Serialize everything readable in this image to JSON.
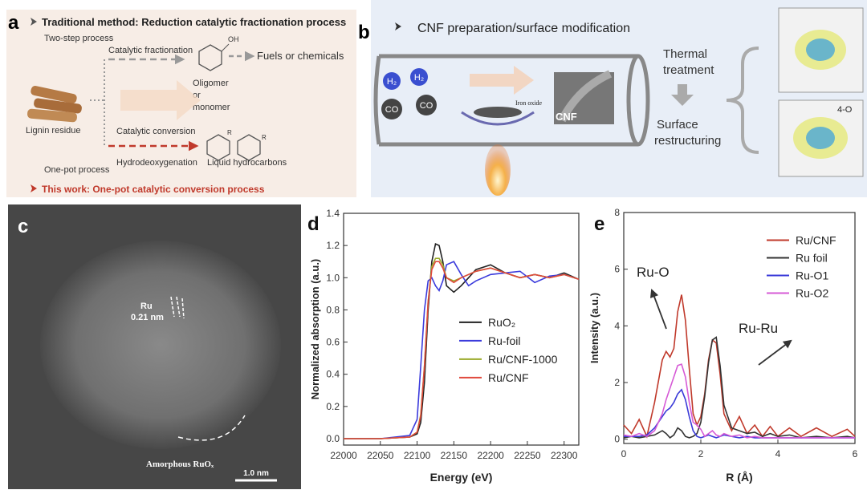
{
  "panel_a": {
    "label": "a",
    "title": "Traditional method: Reduction catalytic fractionation process",
    "two_step": "Two-step process",
    "fractionation": "Catalytic fractionation",
    "oh": "OH",
    "fuels": "Fuels or chemicals",
    "oligomer": [
      "Oligomer",
      "or",
      "monomer"
    ],
    "lignin": "Lignin residue",
    "conversion": "Catalytic conversion",
    "r_labels": [
      "R",
      "R"
    ],
    "hdo": "Hydrodeoxygenation",
    "liquid": "Liquid hydrocarbons",
    "one_pot": "One-pot process",
    "this_work": "This work: One-pot catalytic conversion process"
  },
  "panel_b": {
    "label": "b",
    "title": "CNF preparation/surface modification",
    "gases": [
      "H₂",
      "H₂",
      "CO",
      "CO"
    ],
    "iron_oxide": "Iron oxide",
    "cnf": "CNF",
    "thermal": [
      "Thermal",
      "treatment"
    ],
    "surface": [
      "Surface",
      "restructuring"
    ],
    "structure_label": "4-O"
  },
  "panel_c": {
    "label": "c",
    "ru": "Ru",
    "spacing": "0.21 nm",
    "amorphous": "Amorphous RuOₓ",
    "scale": "1.0 nm"
  },
  "chart_data": [
    {
      "type": "line",
      "label": "d",
      "x_label": "Energy (eV)",
      "y_label": "Normalized absorption (a.u.)",
      "legend": "center right",
      "xlim": [
        22000,
        22320
      ],
      "ylim": [
        -0.04,
        1.4
      ],
      "xticks": [
        22000,
        22050,
        22100,
        22150,
        22200,
        22250,
        22300
      ],
      "yticks": [
        {
          "value": 0,
          "label": "0.0"
        },
        0.2,
        0.4,
        0.6,
        0.8,
        {
          "value": 1,
          "label": "1.0"
        },
        1.2,
        1.4
      ],
      "x": [
        22000,
        22050,
        22090,
        22100,
        22105,
        22110,
        22115,
        22120,
        22125,
        22130,
        22135,
        22140,
        22150,
        22160,
        22170,
        22180,
        22200,
        22220,
        22240,
        22260,
        22280,
        22300,
        22320
      ],
      "series": [
        {
          "name": "RuO₂",
          "color": "#222222",
          "values": [
            0,
            0,
            0.01,
            0.03,
            0.1,
            0.35,
            0.8,
            1.1,
            1.21,
            1.2,
            1.1,
            0.95,
            0.91,
            0.95,
            1.0,
            1.05,
            1.08,
            1.03,
            1.0,
            1.02,
            1.0,
            1.03,
            0.99
          ]
        },
        {
          "name": "Ru-foil",
          "color": "#3b3bdc",
          "values": [
            0,
            0,
            0.02,
            0.12,
            0.45,
            0.8,
            0.98,
            1.0,
            0.95,
            0.92,
            0.98,
            1.08,
            1.1,
            1.02,
            0.95,
            0.98,
            1.02,
            1.03,
            1.04,
            0.97,
            1.01,
            1.02,
            0.99
          ]
        },
        {
          "name": "Ru/CNF-1000",
          "color": "#9aaa2a",
          "values": [
            0,
            0,
            0.01,
            0.04,
            0.15,
            0.45,
            0.85,
            1.07,
            1.12,
            1.12,
            1.08,
            1.0,
            0.98,
            1.0,
            1.02,
            1.04,
            1.06,
            1.03,
            1.0,
            1.02,
            1.0,
            1.02,
            0.99
          ]
        },
        {
          "name": "Ru/CNF",
          "color": "#e0493c",
          "values": [
            0,
            0,
            0.01,
            0.04,
            0.14,
            0.45,
            0.85,
            1.05,
            1.1,
            1.1,
            1.06,
            1.0,
            0.97,
            1.0,
            1.02,
            1.04,
            1.06,
            1.03,
            1.0,
            1.02,
            1.0,
            1.02,
            0.99
          ]
        }
      ]
    },
    {
      "type": "line",
      "label": "e",
      "x_label": "R (Å)",
      "y_label": "Intensity (a.u.)",
      "legend": "upper right",
      "annotations": [
        "Ru-O",
        "Ru-Ru"
      ],
      "xlim": [
        0,
        6
      ],
      "ylim": [
        -0.15,
        8
      ],
      "xticks": [
        0,
        2,
        4,
        6
      ],
      "yticks": [
        0,
        2,
        4,
        6,
        8
      ],
      "x": [
        0,
        0.2,
        0.4,
        0.6,
        0.8,
        1.0,
        1.1,
        1.2,
        1.3,
        1.4,
        1.5,
        1.6,
        1.7,
        1.8,
        1.9,
        2.0,
        2.1,
        2.2,
        2.3,
        2.4,
        2.5,
        2.6,
        2.8,
        3.0,
        3.2,
        3.4,
        3.6,
        3.8,
        4.0,
        4.3,
        4.6,
        5.0,
        5.4,
        5.8,
        6.0
      ],
      "series": [
        {
          "name": "Ru/CNF",
          "color": "#c0392b",
          "values": [
            0.5,
            0.2,
            0.7,
            0.1,
            1.3,
            2.8,
            3.1,
            2.9,
            3.2,
            4.5,
            5.1,
            4.2,
            2.5,
            0.9,
            0.5,
            0.8,
            1.6,
            2.8,
            3.5,
            3.4,
            2.3,
            0.9,
            0.3,
            0.8,
            0.2,
            0.5,
            0.1,
            0.45,
            0.1,
            0.4,
            0.1,
            0.4,
            0.1,
            0.35,
            0.1
          ]
        },
        {
          "name": "Ru foil",
          "color": "#333333",
          "values": [
            0.05,
            0.1,
            0.05,
            0.1,
            0.15,
            0.3,
            0.2,
            0.05,
            0.15,
            0.4,
            0.3,
            0.1,
            0.05,
            0.1,
            0.2,
            0.6,
            1.5,
            2.7,
            3.5,
            3.6,
            2.6,
            1.2,
            0.4,
            0.3,
            0.2,
            0.25,
            0.1,
            0.2,
            0.1,
            0.15,
            0.05,
            0.1,
            0.05,
            0.1,
            0.05
          ]
        },
        {
          "name": "Ru-O1",
          "color": "#3a3ad8",
          "values": [
            0.1,
            0.1,
            0.1,
            0.15,
            0.4,
            0.8,
            1.0,
            1.1,
            1.3,
            1.6,
            1.75,
            1.4,
            0.8,
            0.3,
            0.1,
            0.05,
            0.1,
            0.15,
            0.1,
            0.05,
            0.1,
            0.15,
            0.1,
            0.05,
            0.1,
            0.05,
            0.05,
            0.05,
            0.05,
            0.05,
            0.05,
            0.05,
            0.05,
            0.05,
            0.05
          ]
        },
        {
          "name": "Ru-O2",
          "color": "#d65ad6",
          "values": [
            0.15,
            0.1,
            0.2,
            0.1,
            0.3,
            0.9,
            1.4,
            1.8,
            2.2,
            2.6,
            2.65,
            2.2,
            1.3,
            0.6,
            0.5,
            0.35,
            0.1,
            0.2,
            0.3,
            0.15,
            0.1,
            0.2,
            0.1,
            0.15,
            0.05,
            0.1,
            0.05,
            0.05,
            0.05,
            0.05,
            0.05,
            0.05,
            0.05,
            0.05,
            0.05
          ]
        }
      ]
    }
  ]
}
